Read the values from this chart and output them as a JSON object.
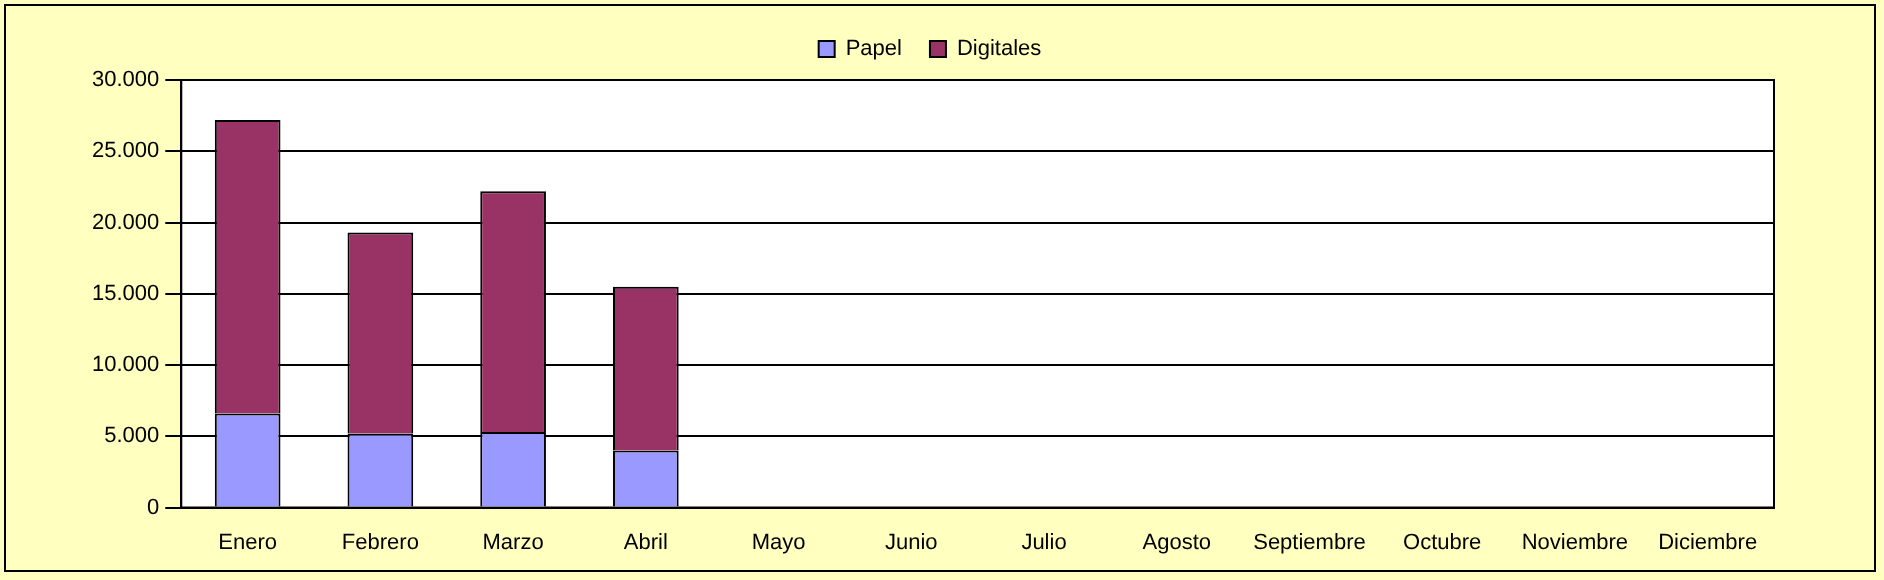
{
  "chart_data": {
    "type": "bar",
    "stacked": true,
    "categories": [
      "Enero",
      "Febrero",
      "Marzo",
      "Abril",
      "Mayo",
      "Junio",
      "Julio",
      "Agosto",
      "Septiembre",
      "Octubre",
      "Noviembre",
      "Diciembre"
    ],
    "series": [
      {
        "name": "Papel",
        "color": "#9999ff",
        "values": [
          6600,
          5200,
          5300,
          4000,
          0,
          0,
          0,
          0,
          0,
          0,
          0,
          0
        ]
      },
      {
        "name": "Digitales",
        "color": "#993366",
        "values": [
          20600,
          14100,
          16900,
          11500,
          0,
          0,
          0,
          0,
          0,
          0,
          0,
          0
        ]
      }
    ],
    "ylim": [
      0,
      30000
    ],
    "yticks": [
      {
        "value": 0,
        "label": "0"
      },
      {
        "value": 5000,
        "label": "5.000"
      },
      {
        "value": 10000,
        "label": "10.000"
      },
      {
        "value": 15000,
        "label": "15.000"
      },
      {
        "value": 20000,
        "label": "20.000"
      },
      {
        "value": 25000,
        "label": "25.000"
      },
      {
        "value": 30000,
        "label": "30.000"
      }
    ],
    "grid": "y",
    "legend": "top"
  }
}
